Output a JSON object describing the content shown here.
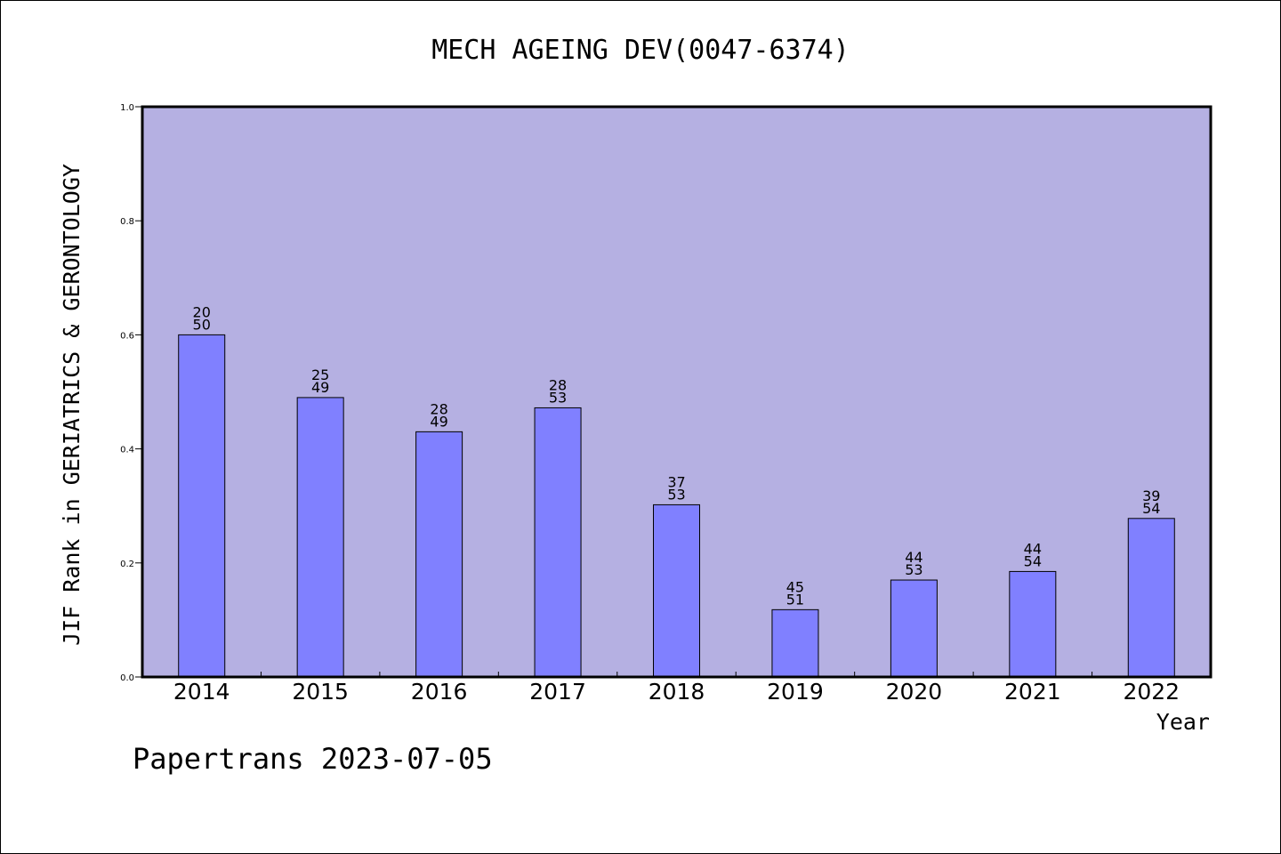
{
  "chart_data": {
    "type": "bar",
    "title": "MECH AGEING DEV(0047-6374)",
    "xlabel": "Year",
    "ylabel": "JIF Rank in GERIATRICS & GERONTOLOGY",
    "categories": [
      "2014",
      "2015",
      "2016",
      "2017",
      "2018",
      "2019",
      "2020",
      "2021",
      "2022"
    ],
    "values": [
      0.6,
      0.49,
      0.43,
      0.472,
      0.302,
      0.118,
      0.17,
      0.185,
      0.278
    ],
    "bar_labels": [
      [
        "20",
        "50"
      ],
      [
        "25",
        "49"
      ],
      [
        "28",
        "49"
      ],
      [
        "28",
        "53"
      ],
      [
        "37",
        "53"
      ],
      [
        "45",
        "51"
      ],
      [
        "44",
        "53"
      ],
      [
        "44",
        "54"
      ],
      [
        "39",
        "54"
      ]
    ],
    "ylim": [
      0,
      1.0
    ],
    "yticks": [
      "0.0",
      "0.2",
      "0.4",
      "0.6",
      "0.8",
      "1.0"
    ],
    "grid": false,
    "colors": {
      "plot_background": "#b5b0e2",
      "bar_fill": "#8080ff",
      "bar_stroke": "#000000"
    }
  },
  "footer": {
    "text": "Papertrans 2023-07-05"
  }
}
